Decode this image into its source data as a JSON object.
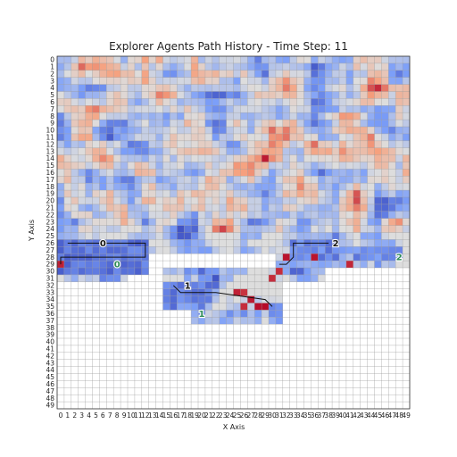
{
  "chart_data": {
    "type": "heatmap",
    "title": "Explorer Agents Path History - Time Step: 11",
    "xlabel": "X Axis",
    "ylabel": "Y Axis",
    "x_ticks": [
      "0",
      "1",
      "2",
      "3",
      "4",
      "5",
      "6",
      "7",
      "8",
      "9",
      "10",
      "11",
      "12",
      "13",
      "14",
      "15",
      "16",
      "17",
      "18",
      "19",
      "20",
      "21",
      "22",
      "23",
      "24",
      "25",
      "26",
      "27",
      "28",
      "29",
      "30",
      "31",
      "32",
      "33",
      "34",
      "35",
      "36",
      "37",
      "38",
      "39",
      "40",
      "41",
      "42",
      "43",
      "44",
      "45",
      "46",
      "47",
      "48",
      "49"
    ],
    "y_ticks": [
      "0",
      "1",
      "2",
      "3",
      "4",
      "5",
      "6",
      "7",
      "8",
      "9",
      "10",
      "11",
      "12",
      "13",
      "14",
      "15",
      "16",
      "17",
      "18",
      "19",
      "20",
      "21",
      "22",
      "23",
      "24",
      "25",
      "26",
      "27",
      "28",
      "29",
      "30",
      "31",
      "32",
      "33",
      "34",
      "35",
      "36",
      "37",
      "38",
      "39",
      "40",
      "41",
      "42",
      "43",
      "44",
      "45",
      "46",
      "47",
      "48",
      "49"
    ],
    "xlim": [
      0,
      49
    ],
    "ylim": [
      49,
      0
    ],
    "grid": true,
    "colormap": "coolwarm",
    "explored_region": {
      "full_rows_to": 24,
      "segments": [
        {
          "y": [
            25,
            27
          ],
          "x": [
            0,
            13
          ]
        },
        {
          "y": [
            25,
            25
          ],
          "x": [
            14,
            49
          ]
        },
        {
          "y": [
            26,
            27
          ],
          "x": [
            14,
            49
          ]
        },
        {
          "y": [
            28,
            30
          ],
          "x": [
            0,
            12
          ]
        },
        {
          "y": [
            28,
            29
          ],
          "x": [
            31,
            49
          ]
        },
        {
          "y": [
            30,
            30
          ],
          "x": [
            31,
            37
          ]
        },
        {
          "y": [
            31,
            31
          ],
          "x": [
            0,
            9
          ]
        },
        {
          "y": [
            31,
            31
          ],
          "x": [
            32,
            37
          ]
        },
        {
          "y": [
            30,
            35
          ],
          "x": [
            15,
            31
          ]
        },
        {
          "y": [
            36,
            37
          ],
          "x": [
            19,
            31
          ]
        }
      ]
    },
    "hot_spots": [
      {
        "x": 25,
        "y": 33
      },
      {
        "x": 26,
        "y": 33
      },
      {
        "x": 27,
        "y": 34
      },
      {
        "x": 28,
        "y": 35
      },
      {
        "x": 29,
        "y": 35
      },
      {
        "x": 30,
        "y": 31
      },
      {
        "x": 31,
        "y": 30
      },
      {
        "x": 32,
        "y": 28
      },
      {
        "x": 0,
        "y": 29
      },
      {
        "x": 36,
        "y": 28
      },
      {
        "x": 41,
        "y": 29
      },
      {
        "x": 26,
        "y": 35
      }
    ],
    "agents": [
      {
        "id": "0",
        "label_color": "#111111",
        "start": {
          "x": 6,
          "y": 26
        }
      },
      {
        "id": "0",
        "label_color": "#2e8b57",
        "end": {
          "x": 8,
          "y": 29
        }
      },
      {
        "id": "1",
        "label_color": "#111111",
        "start": {
          "x": 18,
          "y": 32
        }
      },
      {
        "id": "1",
        "label_color": "#2e8b57",
        "end": {
          "x": 20,
          "y": 36
        }
      },
      {
        "id": "2",
        "label_color": "#111111",
        "start": {
          "x": 39,
          "y": 26
        }
      },
      {
        "id": "2",
        "label_color": "#2e8b57",
        "end": {
          "x": 48,
          "y": 28
        }
      }
    ],
    "paths": [
      {
        "points": [
          [
            1,
            26
          ],
          [
            12,
            26
          ],
          [
            12,
            28
          ],
          [
            0,
            28
          ],
          [
            0,
            29
          ]
        ]
      },
      {
        "points": [
          [
            16,
            32
          ],
          [
            17,
            33
          ],
          [
            22,
            33
          ],
          [
            29,
            34
          ],
          [
            30,
            35
          ]
        ]
      },
      {
        "points": [
          [
            38,
            26
          ],
          [
            33,
            26
          ],
          [
            33,
            28
          ],
          [
            32,
            29
          ],
          [
            31,
            29
          ]
        ]
      }
    ]
  }
}
